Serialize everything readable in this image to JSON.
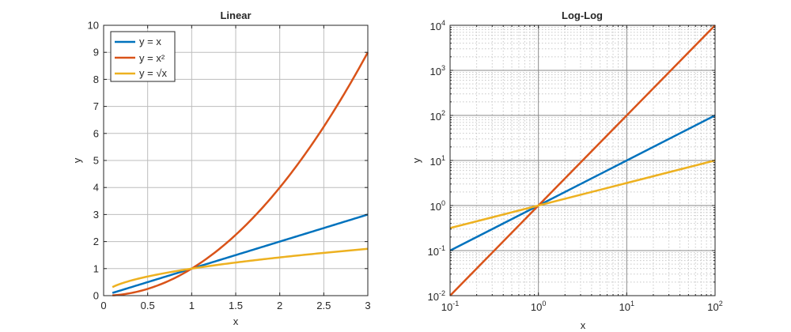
{
  "chart_data": [
    {
      "type": "line",
      "title": "Linear",
      "xlabel": "x",
      "ylabel": "y",
      "xscale": "linear",
      "yscale": "linear",
      "xlim": [
        0,
        3
      ],
      "ylim": [
        0,
        10
      ],
      "xticks": [
        0,
        0.5,
        1,
        1.5,
        2,
        2.5,
        3
      ],
      "xtick_labels": [
        "0",
        "0.5",
        "1",
        "1.5",
        "2",
        "2.5",
        "3"
      ],
      "yticks": [
        0,
        1,
        2,
        3,
        4,
        5,
        6,
        7,
        8,
        9,
        10
      ],
      "ytick_labels": [
        "0",
        "1",
        "2",
        "3",
        "4",
        "5",
        "6",
        "7",
        "8",
        "9",
        "10"
      ],
      "grid": "major",
      "legend": {
        "placement": "top-left"
      },
      "series": [
        {
          "name": "y = x",
          "color": "#0072BD",
          "x": [
            0.1,
            0.5,
            1,
            1.5,
            2,
            2.5,
            3
          ],
          "y": [
            0.1,
            0.5,
            1,
            1.5,
            2,
            2.5,
            3
          ]
        },
        {
          "name": "y = x²",
          "color": "#D95319",
          "x": [
            0.1,
            0.5,
            1,
            1.5,
            2,
            2.5,
            3
          ],
          "y": [
            0.01,
            0.25,
            1,
            2.25,
            4,
            6.25,
            9
          ]
        },
        {
          "name": "y = √x",
          "color": "#EDB120",
          "x": [
            0.1,
            0.5,
            1,
            1.5,
            2,
            2.5,
            3
          ],
          "y": [
            0.316,
            0.707,
            1,
            1.225,
            1.414,
            1.581,
            1.732
          ]
        }
      ]
    },
    {
      "type": "line",
      "title": "Log-Log",
      "xlabel": "x",
      "ylabel": "y",
      "xscale": "log",
      "yscale": "log",
      "xlim": [
        0.1,
        100
      ],
      "ylim": [
        0.01,
        10000
      ],
      "xtick_exponents": [
        -1,
        0,
        1,
        2
      ],
      "ytick_exponents": [
        -2,
        -1,
        0,
        1,
        2,
        3,
        4
      ],
      "tick_base": "10",
      "grid": "major and minor",
      "series": [
        {
          "color": "#0072BD",
          "x": [
            0.1,
            1,
            10,
            100
          ],
          "y": [
            0.1,
            1,
            10,
            100
          ]
        },
        {
          "color": "#D95319",
          "x": [
            0.1,
            1,
            10,
            100
          ],
          "y": [
            0.01,
            1,
            100,
            10000
          ]
        },
        {
          "color": "#EDB120",
          "x": [
            0.1,
            1,
            10,
            100
          ],
          "y": [
            0.316,
            1,
            3.162,
            10
          ]
        }
      ]
    }
  ]
}
